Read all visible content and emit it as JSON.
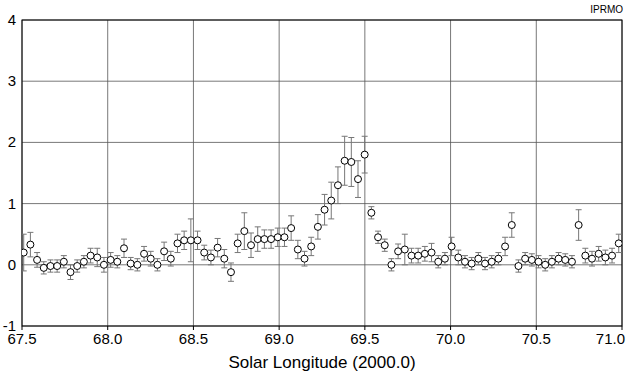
{
  "chart_data": {
    "type": "scatter",
    "xlabel": "Solar Longitude (2000.0)",
    "annotation": "IPRMO",
    "marker": "circle",
    "color": "#000000",
    "grid": true,
    "x": [
      67.51,
      67.549,
      67.588,
      67.627,
      67.666,
      67.705,
      67.744,
      67.783,
      67.822,
      67.861,
      67.9,
      67.939,
      67.978,
      68.017,
      68.056,
      68.095,
      68.134,
      68.173,
      68.212,
      68.251,
      68.29,
      68.329,
      68.368,
      68.407,
      68.446,
      68.485,
      68.524,
      68.563,
      68.602,
      68.641,
      68.68,
      68.719,
      68.758,
      68.797,
      68.836,
      68.875,
      68.914,
      68.953,
      68.992,
      69.031,
      69.07,
      69.109,
      69.148,
      69.187,
      69.226,
      69.265,
      69.304,
      69.343,
      69.382,
      69.421,
      69.46,
      69.499,
      69.538,
      69.577,
      69.616,
      69.655,
      69.694,
      69.733,
      69.772,
      69.811,
      69.85,
      69.889,
      69.928,
      69.967,
      70.006,
      70.045,
      70.084,
      70.123,
      70.162,
      70.201,
      70.24,
      70.279,
      70.318,
      70.357,
      70.396,
      70.435,
      70.474,
      70.513,
      70.552,
      70.591,
      70.63,
      70.669,
      70.708,
      70.747,
      70.786,
      70.825,
      70.864,
      70.903,
      70.942,
      70.981
    ],
    "values": [
      0.2,
      0.33,
      0.08,
      -0.05,
      -0.02,
      -0.02,
      0.05,
      -0.12,
      -0.02,
      0.05,
      0.15,
      0.12,
      0.0,
      0.08,
      0.05,
      0.27,
      0.02,
      0.0,
      0.18,
      0.1,
      0.0,
      0.22,
      0.1,
      0.35,
      0.4,
      0.4,
      0.4,
      0.2,
      0.12,
      0.28,
      0.1,
      -0.12,
      0.35,
      0.55,
      0.32,
      0.42,
      0.42,
      0.42,
      0.45,
      0.45,
      0.6,
      0.25,
      0.1,
      0.3,
      0.62,
      0.9,
      1.05,
      1.3,
      1.7,
      1.68,
      1.4,
      1.8,
      0.85,
      0.45,
      0.32,
      0.0,
      0.22,
      0.25,
      0.15,
      0.15,
      0.18,
      0.2,
      0.05,
      0.1,
      0.3,
      0.12,
      0.05,
      0.02,
      0.1,
      0.02,
      0.05,
      0.1,
      0.3,
      0.65,
      -0.02,
      0.1,
      0.08,
      0.05,
      0.0,
      0.05,
      0.1,
      0.08,
      0.05,
      0.65,
      0.15,
      0.1,
      0.18,
      0.12,
      0.15,
      0.35
    ],
    "errors": [
      0.3,
      0.2,
      0.12,
      0.1,
      0.1,
      0.1,
      0.1,
      0.12,
      0.1,
      0.1,
      0.12,
      0.15,
      0.12,
      0.12,
      0.1,
      0.15,
      0.1,
      0.1,
      0.12,
      0.12,
      0.1,
      0.15,
      0.12,
      0.15,
      0.15,
      0.35,
      0.15,
      0.12,
      0.12,
      0.15,
      0.15,
      0.15,
      0.15,
      0.3,
      0.2,
      0.2,
      0.15,
      0.15,
      0.15,
      0.15,
      0.2,
      0.15,
      0.12,
      0.15,
      0.2,
      0.25,
      0.3,
      0.3,
      0.4,
      0.4,
      0.3,
      0.3,
      0.1,
      0.1,
      0.1,
      0.1,
      0.12,
      0.25,
      0.12,
      0.12,
      0.12,
      0.15,
      0.1,
      0.1,
      0.15,
      0.12,
      0.1,
      0.1,
      0.1,
      0.1,
      0.1,
      0.1,
      0.15,
      0.2,
      0.1,
      0.1,
      0.1,
      0.1,
      0.1,
      0.1,
      0.1,
      0.1,
      0.1,
      0.25,
      0.12,
      0.12,
      0.12,
      0.12,
      0.12,
      0.15
    ],
    "xlim": [
      67.5,
      71.0
    ],
    "xticks": [
      67.5,
      {
        "value": 68,
        "label": "68.0"
      },
      68.5,
      {
        "value": 69,
        "label": "69.0"
      },
      69.5,
      {
        "value": 70,
        "label": "70.0"
      },
      70.5,
      {
        "value": 71,
        "label": "71.0"
      }
    ],
    "ylim": [
      -1,
      4
    ],
    "yticks": [
      -1,
      0,
      1,
      2,
      3,
      4
    ]
  }
}
